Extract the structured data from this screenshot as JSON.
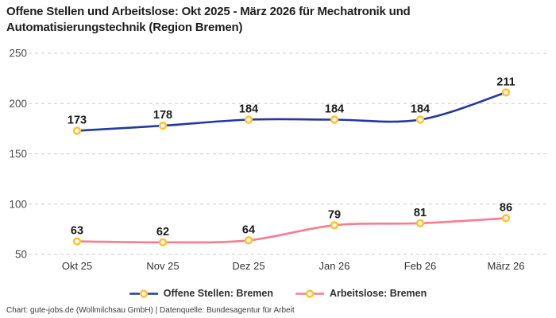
{
  "title": {
    "full": "Offene Stellen und Arbeitslose: Okt 2025 - März 2026 für Mechatronik und Automatisierungstechnik (Region Bremen)",
    "lines": [
      "Offene Stellen und Arbeitslose: Okt 2025 - März 2026 für Mechatronik und",
      "Automatisierungstechnik (Region Bremen)"
    ]
  },
  "chart_data": {
    "type": "line",
    "title": "Offene Stellen und Arbeitslose: Okt 2025 - März 2026 für Mechatronik und Automatisierungstechnik (Region Bremen)",
    "categories": [
      "Okt 25",
      "Nov 25",
      "Dez 25",
      "Jan 26",
      "Feb 26",
      "März 26"
    ],
    "series": [
      {
        "name": "Offene Stellen: Bremen",
        "color": "#2438A0",
        "values": [
          173,
          178,
          184,
          184,
          184,
          211
        ]
      },
      {
        "name": "Arbeitslose: Bremen",
        "color": "#F97B90",
        "values": [
          63,
          62,
          64,
          79,
          81,
          86
        ]
      }
    ],
    "marker": {
      "fill": "#FFFFFF",
      "ring_color": "#FFC331"
    },
    "y_ticks": [
      50,
      100,
      150,
      200,
      250
    ],
    "ylim": [
      50,
      250
    ],
    "xlabel": "",
    "ylabel": "",
    "grid": {
      "horizontal": true,
      "style": "dashed",
      "color": "#CCCCCC"
    },
    "data_labels": true,
    "legend_position": "bottom",
    "line_shape": "smooth"
  },
  "footer": {
    "text": "Chart: gute-jobs.de (Wollmilchsau GmbH) | Datenquelle: Bundesagentur für Arbeit"
  },
  "colors": {
    "background": "#FFFFFF",
    "y_tick_label": "#4a4a4a",
    "x_tick_label": "#333333",
    "data_label": "#1a1a1a"
  }
}
